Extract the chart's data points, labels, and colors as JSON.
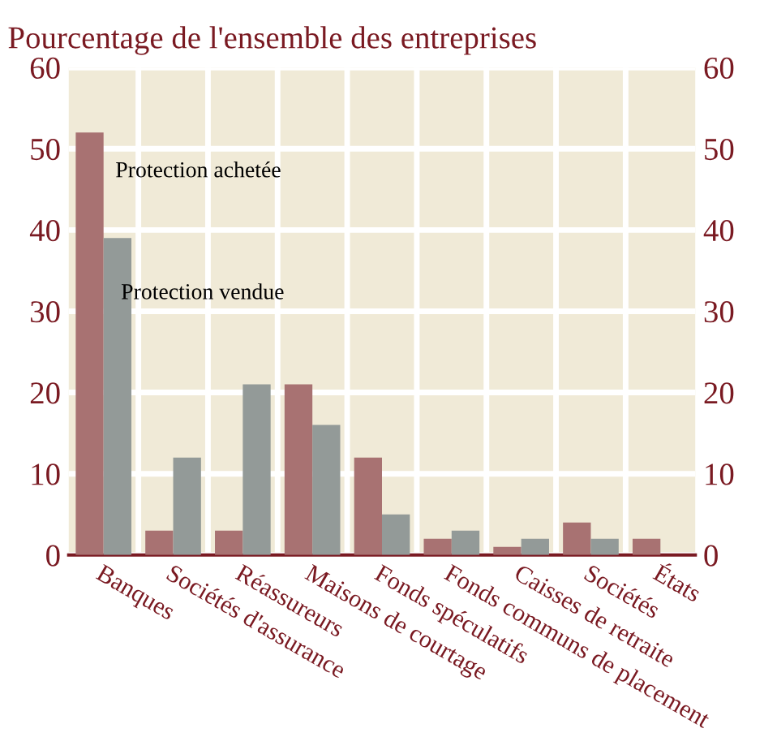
{
  "chart_data": {
    "type": "bar",
    "title": "Pourcentage de l'ensemble des entreprises",
    "categories": [
      "Banques",
      "Sociétés d'assurance",
      "Réassureurs",
      "Maisons de courtage",
      "Fonds spéculatifs",
      "Fonds communs de placement",
      "Caisses de retraite",
      "Sociétés",
      "États"
    ],
    "series": [
      {
        "name": "Protection achetée",
        "color": "#a87272",
        "values": [
          52,
          3,
          3,
          21,
          12,
          2,
          1,
          4,
          2
        ]
      },
      {
        "name": "Protection vendue",
        "color": "#939a98",
        "values": [
          39,
          12,
          21,
          16,
          5,
          3,
          2,
          2,
          null
        ]
      }
    ],
    "ylim": [
      0,
      60
    ],
    "yticks": [
      0,
      10,
      20,
      30,
      40,
      50,
      60
    ],
    "y2lim": [
      0,
      60
    ],
    "y2ticks": [
      0,
      10,
      20,
      30,
      40,
      50,
      60
    ],
    "grid": true
  }
}
